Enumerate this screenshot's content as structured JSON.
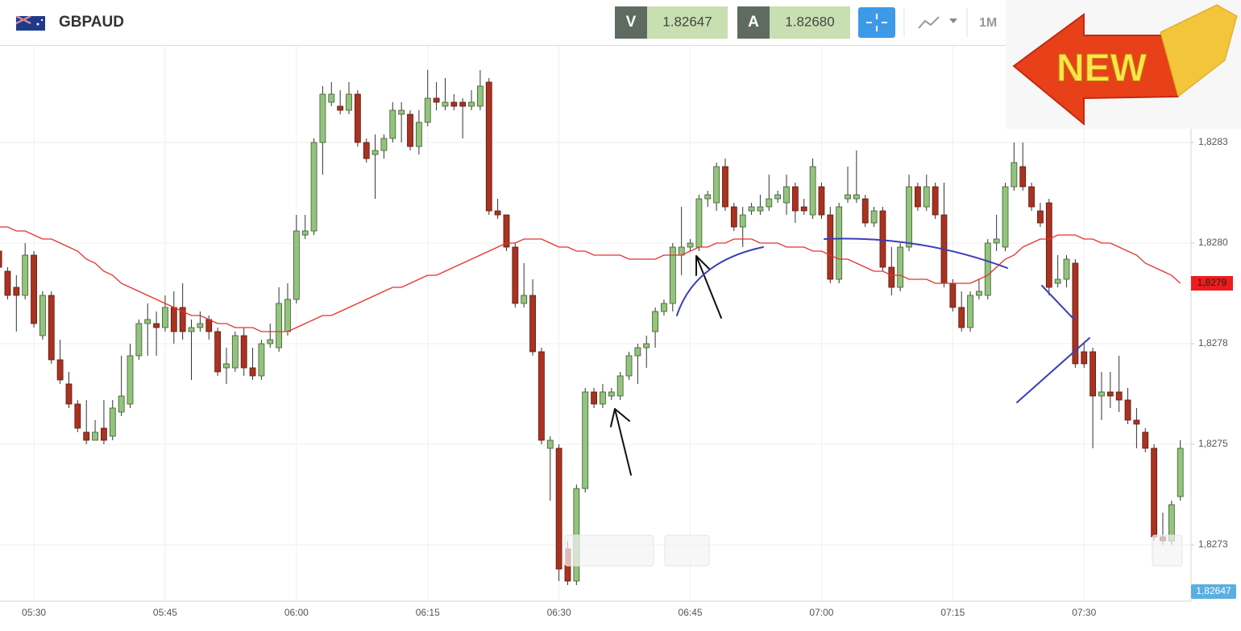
{
  "header": {
    "symbol": "GBPAUD",
    "bid_label": "V",
    "bid": "1.82647",
    "ask_label": "A",
    "ask": "1.82680",
    "timeframe": "1M"
  },
  "badge": "NEW",
  "chart_data": {
    "type": "candlestick",
    "x": [
      "05:26",
      "05:27",
      "05:28",
      "05:29",
      "05:30",
      "05:31",
      "05:32",
      "05:33",
      "05:34",
      "05:35",
      "05:36",
      "05:37",
      "05:38",
      "05:39",
      "05:40",
      "05:41",
      "05:42",
      "05:43",
      "05:44",
      "05:45",
      "05:46",
      "05:47",
      "05:48",
      "05:49",
      "05:50",
      "05:51",
      "05:52",
      "05:53",
      "05:54",
      "05:55",
      "05:56",
      "05:57",
      "05:58",
      "05:59",
      "06:00",
      "06:01",
      "06:02",
      "06:03",
      "06:04",
      "06:05",
      "06:06",
      "06:07",
      "06:08",
      "06:09",
      "06:10",
      "06:11",
      "06:12",
      "06:13",
      "06:14",
      "06:15",
      "06:16",
      "06:17",
      "06:18",
      "06:19",
      "06:20",
      "06:21",
      "06:22",
      "06:23",
      "06:24",
      "06:25",
      "06:26",
      "06:27",
      "06:28",
      "06:29",
      "06:30",
      "06:31",
      "06:32",
      "06:33",
      "06:34",
      "06:35",
      "06:36",
      "06:37",
      "06:38",
      "06:39",
      "06:40",
      "06:41",
      "06:42",
      "06:43",
      "06:44",
      "06:45",
      "06:46",
      "06:47",
      "06:48",
      "06:49",
      "06:50",
      "06:51",
      "06:52",
      "06:53",
      "06:54",
      "06:55",
      "06:56",
      "06:57",
      "06:58",
      "06:59",
      "07:00",
      "07:01",
      "07:02",
      "07:03",
      "07:04",
      "07:05",
      "07:06",
      "07:07",
      "07:08",
      "07:09",
      "07:10",
      "07:11",
      "07:12",
      "07:13",
      "07:14",
      "07:15",
      "07:16",
      "07:17",
      "07:18",
      "07:19",
      "07:20",
      "07:21",
      "07:22",
      "07:23",
      "07:24",
      "07:25",
      "07:26",
      "07:27",
      "07:28",
      "07:29",
      "07:30",
      "07:31",
      "07:32",
      "07:33",
      "07:34",
      "07:35",
      "07:36",
      "07:37",
      "07:38",
      "07:39",
      "07:40",
      "07:41"
    ],
    "open": [
      1.82798,
      1.82793,
      1.82789,
      1.82787,
      1.82797,
      1.82777,
      1.82787,
      1.82771,
      1.82765,
      1.8276,
      1.82753,
      1.82751,
      1.82754,
      1.82752,
      1.82758,
      1.8276,
      1.82772,
      1.8278,
      1.8278,
      1.82779,
      1.82784,
      1.82784,
      1.82778,
      1.82779,
      1.82781,
      1.82778,
      1.82769,
      1.82769,
      1.82777,
      1.82769,
      1.82767,
      1.82775,
      1.82774,
      1.82778,
      1.82786,
      1.82802,
      1.82803,
      1.82825,
      1.82835,
      1.82834,
      1.82833,
      1.82837,
      1.82825,
      1.82822,
      1.82823,
      1.82826,
      1.82832,
      1.82832,
      1.82824,
      1.8283,
      1.82836,
      1.82834,
      1.82835,
      1.82835,
      1.82834,
      1.82834,
      1.8284,
      1.82808,
      1.82807,
      1.82799,
      1.82785,
      1.82787,
      1.82773,
      1.82749,
      1.82749,
      1.82724,
      1.82716,
      1.82739,
      1.82763,
      1.8276,
      1.82762,
      1.82762,
      1.82767,
      1.82772,
      1.82774,
      1.82778,
      1.82783,
      1.82785,
      1.82797,
      1.82799,
      1.82799,
      1.82811,
      1.8281,
      1.82819,
      1.82809,
      1.82804,
      1.82808,
      1.82808,
      1.82809,
      1.82811,
      1.8281,
      1.82814,
      1.82809,
      1.82807,
      1.82814,
      1.82807,
      1.82791,
      1.82811,
      1.82811,
      1.82811,
      1.82805,
      1.82808,
      1.82794,
      1.82789,
      1.82799,
      1.82814,
      1.82809,
      1.82814,
      1.82807,
      1.8279,
      1.82784,
      1.82779,
      1.82787,
      1.82787,
      1.828,
      1.82799,
      1.82814,
      1.82819,
      1.82814,
      1.82808,
      1.8281,
      1.8279,
      1.82791,
      1.82795,
      1.82773,
      1.82773,
      1.82762,
      1.82763,
      1.82763,
      1.82761,
      1.82756,
      1.82753,
      1.82749,
      1.82727,
      1.82726,
      1.82737
    ],
    "high": [
      1.82799,
      1.82794,
      1.82792,
      1.828,
      1.82798,
      1.82788,
      1.82788,
      1.82776,
      1.82768,
      1.82761,
      1.82761,
      1.82756,
      1.82761,
      1.82761,
      1.82772,
      1.82775,
      1.82781,
      1.82785,
      1.82783,
      1.82787,
      1.82788,
      1.8279,
      1.82781,
      1.82783,
      1.82782,
      1.82779,
      1.82774,
      1.82778,
      1.82779,
      1.82774,
      1.82776,
      1.8278,
      1.82789,
      1.8279,
      1.82807,
      1.82807,
      1.82826,
      1.82839,
      1.8284,
      1.82838,
      1.8284,
      1.82838,
      1.82826,
      1.82827,
      1.82827,
      1.82835,
      1.82835,
      1.82833,
      1.82833,
      1.82843,
      1.8284,
      1.82841,
      1.82837,
      1.82836,
      1.82838,
      1.82843,
      1.82841,
      1.82811,
      1.82807,
      1.828,
      1.82795,
      1.82791,
      1.82774,
      1.82752,
      1.8275,
      1.82726,
      1.8274,
      1.82764,
      1.82764,
      1.82765,
      1.82764,
      1.82768,
      1.82773,
      1.82775,
      1.82777,
      1.82784,
      1.82786,
      1.828,
      1.82809,
      1.82801,
      1.82812,
      1.82813,
      1.8282,
      1.82821,
      1.8281,
      1.82809,
      1.8281,
      1.82812,
      1.82817,
      1.82813,
      1.82817,
      1.82815,
      1.82811,
      1.82821,
      1.82815,
      1.82809,
      1.8281,
      1.82819,
      1.82823,
      1.82812,
      1.82809,
      1.82809,
      1.82799,
      1.828,
      1.82817,
      1.82815,
      1.82817,
      1.82815,
      1.82815,
      1.82791,
      1.82788,
      1.82788,
      1.82791,
      1.82801,
      1.82807,
      1.82815,
      1.82825,
      1.82825,
      1.82815,
      1.8281,
      1.82811,
      1.82797,
      1.82797,
      1.82796,
      1.82775,
      1.82774,
      1.82768,
      1.82768,
      1.82772,
      1.82764,
      1.82759,
      1.82754,
      1.8275,
      1.82733,
      1.82736,
      1.82751
    ],
    "low": [
      1.82793,
      1.82786,
      1.82778,
      1.82786,
      1.82779,
      1.82776,
      1.8277,
      1.82765,
      1.82759,
      1.82753,
      1.8275,
      1.82751,
      1.8275,
      1.82751,
      1.82757,
      1.82759,
      1.82771,
      1.82772,
      1.82772,
      1.82778,
      1.82775,
      1.82776,
      1.82766,
      1.82778,
      1.82776,
      1.82767,
      1.82765,
      1.82768,
      1.82767,
      1.82766,
      1.82766,
      1.82774,
      1.82773,
      1.82777,
      1.82785,
      1.82801,
      1.82802,
      1.82817,
      1.82834,
      1.82832,
      1.82832,
      1.82824,
      1.8282,
      1.82811,
      1.82821,
      1.82825,
      1.82825,
      1.82823,
      1.82822,
      1.82829,
      1.82833,
      1.82833,
      1.82833,
      1.82826,
      1.82833,
      1.82833,
      1.82807,
      1.82806,
      1.82798,
      1.82784,
      1.82784,
      1.82772,
      1.8275,
      1.82736,
      1.82716,
      1.82715,
      1.82715,
      1.82738,
      1.82759,
      1.82759,
      1.82761,
      1.82761,
      1.82766,
      1.82765,
      1.82769,
      1.82774,
      1.82782,
      1.82783,
      1.82792,
      1.82798,
      1.82798,
      1.82809,
      1.82808,
      1.82808,
      1.82803,
      1.82799,
      1.82807,
      1.82807,
      1.82808,
      1.8281,
      1.82807,
      1.82805,
      1.82807,
      1.82806,
      1.82806,
      1.8279,
      1.8279,
      1.8281,
      1.8281,
      1.82804,
      1.82804,
      1.82793,
      1.82787,
      1.82788,
      1.82798,
      1.82808,
      1.82808,
      1.82806,
      1.82789,
      1.82783,
      1.82778,
      1.82778,
      1.82786,
      1.82786,
      1.82798,
      1.82798,
      1.82813,
      1.82813,
      1.82808,
      1.82804,
      1.82787,
      1.82789,
      1.82789,
      1.82769,
      1.82769,
      1.82749,
      1.82756,
      1.82759,
      1.82758,
      1.82755,
      1.82749,
      1.82748,
      1.82726,
      1.82725,
      1.82725,
      1.82736
    ],
    "close": [
      1.82794,
      1.82787,
      1.82787,
      1.82797,
      1.8278,
      1.82787,
      1.82771,
      1.82766,
      1.8276,
      1.82754,
      1.82751,
      1.82753,
      1.82751,
      1.82759,
      1.82762,
      1.82772,
      1.8278,
      1.82781,
      1.82779,
      1.82784,
      1.82778,
      1.82778,
      1.82779,
      1.8278,
      1.82778,
      1.82768,
      1.8277,
      1.82777,
      1.82769,
      1.82767,
      1.82775,
      1.82776,
      1.82785,
      1.82786,
      1.82803,
      1.82803,
      1.82825,
      1.82837,
      1.82837,
      1.82833,
      1.82837,
      1.82825,
      1.82821,
      1.82823,
      1.82826,
      1.82833,
      1.82833,
      1.82824,
      1.8283,
      1.82836,
      1.82835,
      1.82835,
      1.82834,
      1.82834,
      1.82835,
      1.82839,
      1.82808,
      1.82807,
      1.82799,
      1.82785,
      1.82787,
      1.82773,
      1.82751,
      1.82751,
      1.82719,
      1.82716,
      1.82739,
      1.82763,
      1.8276,
      1.82763,
      1.82763,
      1.82767,
      1.82772,
      1.82774,
      1.82775,
      1.82783,
      1.82785,
      1.82799,
      1.82799,
      1.828,
      1.82811,
      1.82812,
      1.82819,
      1.82809,
      1.82804,
      1.82807,
      1.82809,
      1.82809,
      1.82811,
      1.82812,
      1.82814,
      1.82808,
      1.82808,
      1.82819,
      1.82807,
      1.82791,
      1.82809,
      1.82812,
      1.82812,
      1.82805,
      1.82808,
      1.82794,
      1.82789,
      1.82799,
      1.82814,
      1.82809,
      1.82814,
      1.82807,
      1.8279,
      1.82784,
      1.82779,
      1.82787,
      1.82788,
      1.828,
      1.82801,
      1.82814,
      1.8282,
      1.82814,
      1.82809,
      1.82805,
      1.82789,
      1.82791,
      1.82796,
      1.8277,
      1.8277,
      1.82762,
      1.82763,
      1.82762,
      1.82761,
      1.82756,
      1.82755,
      1.82749,
      1.82727,
      1.82726,
      1.82735,
      1.82749
    ],
    "up_color": "#93c47d",
    "down_color": "#a93220",
    "series": [
      {
        "color": "#e8302a",
        "values": [
          1.82804,
          1.82804,
          1.82803,
          1.82803,
          1.82802,
          1.82801,
          1.82801,
          1.828,
          1.82799,
          1.82798,
          1.82796,
          1.82795,
          1.82793,
          1.82792,
          1.8279,
          1.82789,
          1.82788,
          1.82787,
          1.82786,
          1.82785,
          1.82784,
          1.82783,
          1.82782,
          1.82782,
          1.82781,
          1.8278,
          1.8278,
          1.82779,
          1.82779,
          1.82779,
          1.82778,
          1.82778,
          1.82778,
          1.82778,
          1.82779,
          1.8278,
          1.82781,
          1.82782,
          1.82782,
          1.82783,
          1.82784,
          1.82785,
          1.82786,
          1.82787,
          1.82788,
          1.82789,
          1.82789,
          1.8279,
          1.82791,
          1.82792,
          1.82792,
          1.82793,
          1.82794,
          1.82795,
          1.82796,
          1.82797,
          1.82798,
          1.82799,
          1.828,
          1.828,
          1.82801,
          1.82801,
          1.82801,
          1.828,
          1.82799,
          1.82799,
          1.82798,
          1.82798,
          1.82797,
          1.82797,
          1.82797,
          1.82797,
          1.82796,
          1.82796,
          1.82796,
          1.82796,
          1.82797,
          1.82797,
          1.82797,
          1.82798,
          1.82799,
          1.82799,
          1.828,
          1.828,
          1.82801,
          1.82801,
          1.82801,
          1.828,
          1.828,
          1.828,
          1.82799,
          1.82799,
          1.82799,
          1.82798,
          1.82798,
          1.82797,
          1.82796,
          1.82796,
          1.82795,
          1.82794,
          1.82793,
          1.82793,
          1.82792,
          1.82792,
          1.82791,
          1.82791,
          1.82791,
          1.8279,
          1.8279,
          1.8279,
          1.8279,
          1.8279,
          1.82791,
          1.82792,
          1.82794,
          1.82796,
          1.82797,
          1.82799,
          1.828,
          1.82801,
          1.82801,
          1.82802,
          1.82802,
          1.82802,
          1.82801,
          1.82801,
          1.828,
          1.828,
          1.82799,
          1.82798,
          1.82797,
          1.82795,
          1.82794,
          1.82793,
          1.82792,
          1.8279
        ]
      }
    ],
    "ma_last_label": {
      "value": 1.8279,
      "label": "1,8279"
    },
    "price_label": {
      "value": 1.82647,
      "label": "1,82647"
    },
    "ylim": [
      1.82711,
      1.82849
    ],
    "yticks": [
      {
        "value": 1.82725,
        "label": "1,8273"
      },
      {
        "value": 1.8275,
        "label": "1,8275"
      },
      {
        "value": 1.82775,
        "label": "1,8278"
      },
      {
        "value": 1.828,
        "label": "1,8280"
      },
      {
        "value": 1.82825,
        "label": "1,8283"
      }
    ],
    "xticks": [
      "05:30",
      "05:45",
      "06:00",
      "06:15",
      "06:30",
      "06:45",
      "07:00",
      "07:15",
      "07:30"
    ],
    "grid": true
  }
}
